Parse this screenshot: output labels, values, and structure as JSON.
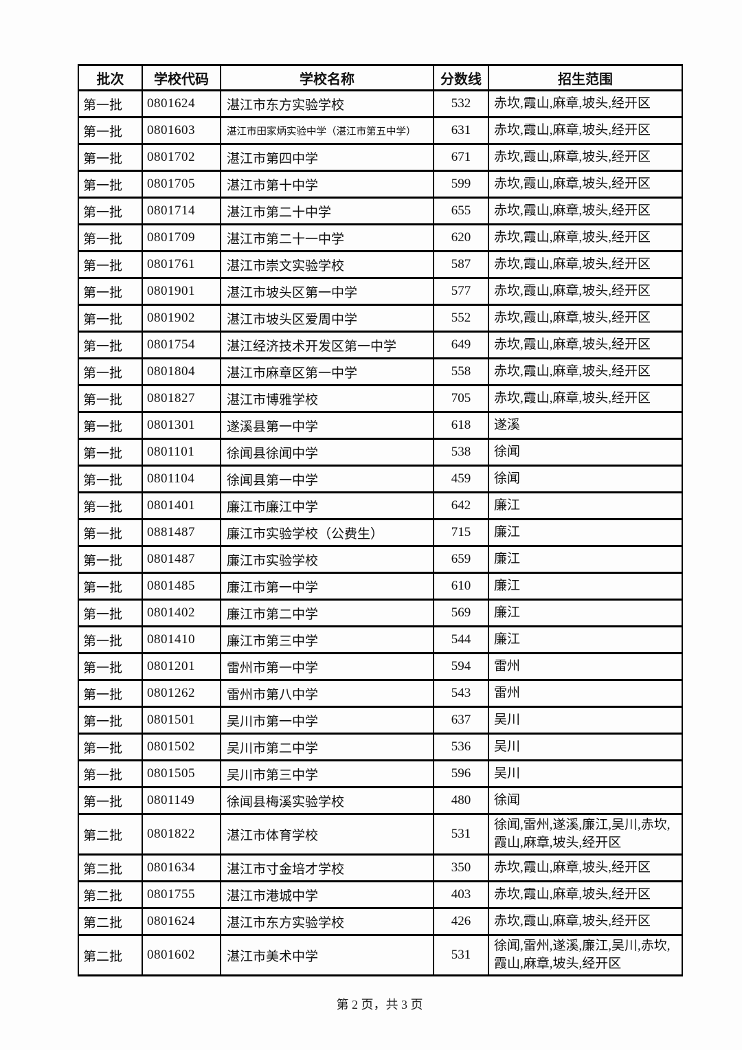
{
  "page": {
    "footer": "第 2 页，共 3 页"
  },
  "table": {
    "columns": [
      "批次",
      "学校代码",
      "学校名称",
      "分数线",
      "招生范围"
    ],
    "rows": [
      {
        "batch": "第一批",
        "code": "0801624",
        "name": "湛江市东方实验学校",
        "score": "532",
        "range": "赤坎,霞山,麻章,坡头,经开区"
      },
      {
        "batch": "第一批",
        "code": "0801603",
        "name": "湛江市田家炳实验中学（湛江市第五中学）",
        "score": "631",
        "range": "赤坎,霞山,麻章,坡头,经开区"
      },
      {
        "batch": "第一批",
        "code": "0801702",
        "name": "湛江市第四中学",
        "score": "671",
        "range": "赤坎,霞山,麻章,坡头,经开区"
      },
      {
        "batch": "第一批",
        "code": "0801705",
        "name": "湛江市第十中学",
        "score": "599",
        "range": "赤坎,霞山,麻章,坡头,经开区"
      },
      {
        "batch": "第一批",
        "code": "0801714",
        "name": "湛江市第二十中学",
        "score": "655",
        "range": "赤坎,霞山,麻章,坡头,经开区"
      },
      {
        "batch": "第一批",
        "code": "0801709",
        "name": "湛江市第二十一中学",
        "score": "620",
        "range": "赤坎,霞山,麻章,坡头,经开区"
      },
      {
        "batch": "第一批",
        "code": "0801761",
        "name": "湛江市崇文实验学校",
        "score": "587",
        "range": "赤坎,霞山,麻章,坡头,经开区"
      },
      {
        "batch": "第一批",
        "code": "0801901",
        "name": "湛江市坡头区第一中学",
        "score": "577",
        "range": "赤坎,霞山,麻章,坡头,经开区"
      },
      {
        "batch": "第一批",
        "code": "0801902",
        "name": "湛江市坡头区爱周中学",
        "score": "552",
        "range": "赤坎,霞山,麻章,坡头,经开区"
      },
      {
        "batch": "第一批",
        "code": "0801754",
        "name": "湛江经济技术开发区第一中学",
        "score": "649",
        "range": "赤坎,霞山,麻章,坡头,经开区"
      },
      {
        "batch": "第一批",
        "code": "0801804",
        "name": "湛江市麻章区第一中学",
        "score": "558",
        "range": "赤坎,霞山,麻章,坡头,经开区"
      },
      {
        "batch": "第一批",
        "code": "0801827",
        "name": "湛江市博雅学校",
        "score": "705",
        "range": "赤坎,霞山,麻章,坡头,经开区"
      },
      {
        "batch": "第一批",
        "code": "0801301",
        "name": "遂溪县第一中学",
        "score": "618",
        "range": "遂溪"
      },
      {
        "batch": "第一批",
        "code": "0801101",
        "name": "徐闻县徐闻中学",
        "score": "538",
        "range": "徐闻"
      },
      {
        "batch": "第一批",
        "code": "0801104",
        "name": "徐闻县第一中学",
        "score": "459",
        "range": "徐闻"
      },
      {
        "batch": "第一批",
        "code": "0801401",
        "name": "廉江市廉江中学",
        "score": "642",
        "range": "廉江"
      },
      {
        "batch": "第一批",
        "code": "0881487",
        "name": "廉江市实验学校（公费生）",
        "score": "715",
        "range": "廉江"
      },
      {
        "batch": "第一批",
        "code": "0801487",
        "name": "廉江市实验学校",
        "score": "659",
        "range": "廉江"
      },
      {
        "batch": "第一批",
        "code": "0801485",
        "name": "廉江市第一中学",
        "score": "610",
        "range": "廉江"
      },
      {
        "batch": "第一批",
        "code": "0801402",
        "name": "廉江市第二中学",
        "score": "569",
        "range": "廉江"
      },
      {
        "batch": "第一批",
        "code": "0801410",
        "name": "廉江市第三中学",
        "score": "544",
        "range": "廉江"
      },
      {
        "batch": "第一批",
        "code": "0801201",
        "name": "雷州市第一中学",
        "score": "594",
        "range": "雷州"
      },
      {
        "batch": "第一批",
        "code": "0801262",
        "name": "雷州市第八中学",
        "score": "543",
        "range": "雷州"
      },
      {
        "batch": "第一批",
        "code": "0801501",
        "name": "吴川市第一中学",
        "score": "637",
        "range": "吴川"
      },
      {
        "batch": "第一批",
        "code": "0801502",
        "name": "吴川市第二中学",
        "score": "536",
        "range": "吴川"
      },
      {
        "batch": "第一批",
        "code": "0801505",
        "name": "吴川市第三中学",
        "score": "596",
        "range": "吴川"
      },
      {
        "batch": "第一批",
        "code": "0801149",
        "name": "徐闻县梅溪实验学校",
        "score": "480",
        "range": "徐闻"
      },
      {
        "batch": "第二批",
        "code": "0801822",
        "name": "湛江市体育学校",
        "score": "531",
        "range": "徐闻,雷州,遂溪,廉江,吴川,赤坎,霞山,麻章,坡头,经开区"
      },
      {
        "batch": "第二批",
        "code": "0801634",
        "name": "湛江市寸金培才学校",
        "score": "350",
        "range": "赤坎,霞山,麻章,坡头,经开区"
      },
      {
        "batch": "第二批",
        "code": "0801755",
        "name": "湛江市港城中学",
        "score": "403",
        "range": "赤坎,霞山,麻章,坡头,经开区"
      },
      {
        "batch": "第二批",
        "code": "0801624",
        "name": "湛江市东方实验学校",
        "score": "426",
        "range": "赤坎,霞山,麻章,坡头,经开区"
      },
      {
        "batch": "第二批",
        "code": "0801602",
        "name": "湛江市美术中学",
        "score": "531",
        "range": "徐闻,雷州,遂溪,廉江,吴川,赤坎,霞山,麻章,坡头,经开区"
      }
    ]
  }
}
